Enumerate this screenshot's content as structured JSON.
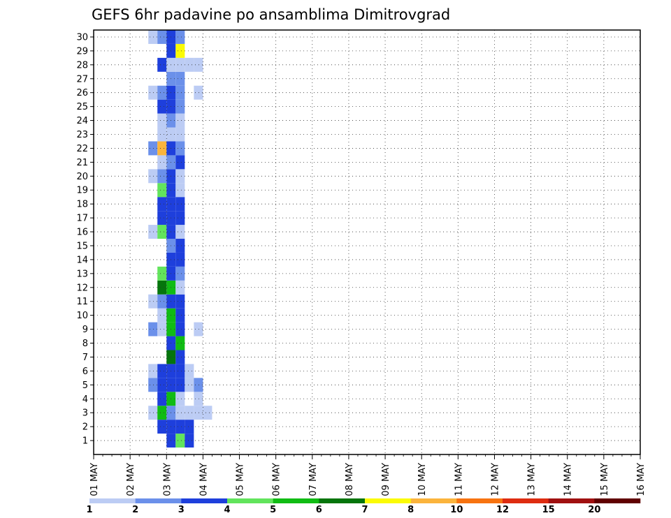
{
  "chart_data": {
    "type": "heatmap",
    "title": "GEFS 6hr padavine po ansamblima Dimitrovgrad",
    "xlabel": "",
    "ylabel": "",
    "x_tick_labels": [
      "01 MAY",
      "02 MAY",
      "03 MAY",
      "04 MAY",
      "05 MAY",
      "06 MAY",
      "07 MAY",
      "08 MAY",
      "09 MAY",
      "10 MAY",
      "11 MAY",
      "12 MAY",
      "13 MAY",
      "14 MAY",
      "15 MAY",
      "16 MAY"
    ],
    "y_tick_labels": [
      "1",
      "2",
      "3",
      "4",
      "5",
      "6",
      "7",
      "8",
      "9",
      "10",
      "11",
      "12",
      "13",
      "14",
      "15",
      "16",
      "17",
      "18",
      "19",
      "20",
      "21",
      "22",
      "23",
      "24",
      "25",
      "26",
      "27",
      "28",
      "29",
      "30"
    ],
    "xlim": [
      "01 MAY",
      "16 MAY"
    ],
    "ylim": [
      0,
      30
    ],
    "grid": true,
    "time_step_hours": 6,
    "colorbar": {
      "levels": [
        "1",
        "2",
        "3",
        "4",
        "5",
        "6",
        "7",
        "8",
        "10",
        "12",
        "15",
        "20"
      ],
      "colors": [
        "#bcccf4",
        "#6b90ea",
        "#1e3fdc",
        "#62e45c",
        "#10bc14",
        "#05750c",
        "#fbfb05",
        "#fbb43c",
        "#f77310",
        "#de2c10",
        "#a01010",
        "#600000"
      ]
    },
    "cells": [
      {
        "m": 1,
        "t": [
          [
            8,
            3
          ],
          [
            9,
            4
          ],
          [
            10,
            3
          ]
        ]
      },
      {
        "m": 2,
        "t": [
          [
            7,
            3
          ],
          [
            8,
            3
          ],
          [
            9,
            3
          ],
          [
            10,
            3
          ]
        ]
      },
      {
        "m": 3,
        "t": [
          [
            6,
            1
          ],
          [
            7,
            5
          ],
          [
            8,
            2
          ],
          [
            9,
            1
          ],
          [
            10,
            1
          ],
          [
            11,
            1
          ],
          [
            12,
            1
          ]
        ]
      },
      {
        "m": 4,
        "t": [
          [
            7,
            3
          ],
          [
            8,
            5
          ],
          [
            9,
            1
          ],
          [
            11,
            1
          ]
        ]
      },
      {
        "m": 5,
        "t": [
          [
            6,
            2
          ],
          [
            7,
            3
          ],
          [
            8,
            3
          ],
          [
            9,
            3
          ],
          [
            10,
            1
          ],
          [
            11,
            2
          ]
        ]
      },
      {
        "m": 6,
        "t": [
          [
            6,
            1
          ],
          [
            7,
            3
          ],
          [
            8,
            3
          ],
          [
            9,
            3
          ],
          [
            10,
            1
          ]
        ]
      },
      {
        "m": 7,
        "t": [
          [
            8,
            6
          ],
          [
            9,
            3
          ]
        ]
      },
      {
        "m": 8,
        "t": [
          [
            8,
            3
          ],
          [
            9,
            5
          ]
        ]
      },
      {
        "m": 9,
        "t": [
          [
            6,
            2
          ],
          [
            7,
            1
          ],
          [
            8,
            5
          ],
          [
            9,
            3
          ],
          [
            11,
            1
          ]
        ]
      },
      {
        "m": 10,
        "t": [
          [
            7,
            1
          ],
          [
            8,
            5
          ],
          [
            9,
            3
          ]
        ]
      },
      {
        "m": 11,
        "t": [
          [
            6,
            1
          ],
          [
            7,
            2
          ],
          [
            8,
            3
          ],
          [
            9,
            3
          ]
        ]
      },
      {
        "m": 12,
        "t": [
          [
            7,
            6
          ],
          [
            8,
            5
          ],
          [
            9,
            1
          ]
        ]
      },
      {
        "m": 13,
        "t": [
          [
            7,
            4
          ],
          [
            8,
            3
          ],
          [
            9,
            2
          ]
        ]
      },
      {
        "m": 14,
        "t": [
          [
            8,
            3
          ],
          [
            9,
            3
          ]
        ]
      },
      {
        "m": 15,
        "t": [
          [
            8,
            2
          ],
          [
            9,
            3
          ]
        ]
      },
      {
        "m": 16,
        "t": [
          [
            6,
            1
          ],
          [
            7,
            4
          ],
          [
            8,
            3
          ],
          [
            9,
            1
          ]
        ]
      },
      {
        "m": 17,
        "t": [
          [
            7,
            3
          ],
          [
            8,
            3
          ],
          [
            9,
            3
          ]
        ]
      },
      {
        "m": 18,
        "t": [
          [
            7,
            3
          ],
          [
            8,
            3
          ],
          [
            9,
            3
          ]
        ]
      },
      {
        "m": 19,
        "t": [
          [
            7,
            4
          ],
          [
            8,
            3
          ],
          [
            9,
            1
          ]
        ]
      },
      {
        "m": 20,
        "t": [
          [
            6,
            1
          ],
          [
            7,
            2
          ],
          [
            8,
            3
          ],
          [
            9,
            1
          ]
        ]
      },
      {
        "m": 21,
        "t": [
          [
            7,
            1
          ],
          [
            8,
            2
          ],
          [
            9,
            3
          ]
        ]
      },
      {
        "m": 22,
        "t": [
          [
            6,
            2
          ],
          [
            7,
            8
          ],
          [
            8,
            3
          ],
          [
            9,
            2
          ]
        ]
      },
      {
        "m": 23,
        "t": [
          [
            7,
            1
          ],
          [
            8,
            1
          ],
          [
            9,
            1
          ]
        ]
      },
      {
        "m": 24,
        "t": [
          [
            7,
            1
          ],
          [
            8,
            2
          ],
          [
            9,
            1
          ]
        ]
      },
      {
        "m": 25,
        "t": [
          [
            7,
            3
          ],
          [
            8,
            3
          ],
          [
            9,
            2
          ]
        ]
      },
      {
        "m": 26,
        "t": [
          [
            6,
            1
          ],
          [
            7,
            2
          ],
          [
            8,
            3
          ],
          [
            9,
            2
          ],
          [
            11,
            1
          ]
        ]
      },
      {
        "m": 27,
        "t": [
          [
            8,
            2
          ],
          [
            9,
            2
          ]
        ]
      },
      {
        "m": 28,
        "t": [
          [
            7,
            3
          ],
          [
            8,
            1
          ],
          [
            9,
            1
          ],
          [
            10,
            1
          ],
          [
            11,
            1
          ]
        ]
      },
      {
        "m": 29,
        "t": [
          [
            8,
            3
          ],
          [
            9,
            7
          ]
        ]
      },
      {
        "m": 30,
        "t": [
          [
            6,
            1
          ],
          [
            7,
            2
          ],
          [
            8,
            3
          ],
          [
            9,
            2
          ]
        ]
      }
    ]
  }
}
